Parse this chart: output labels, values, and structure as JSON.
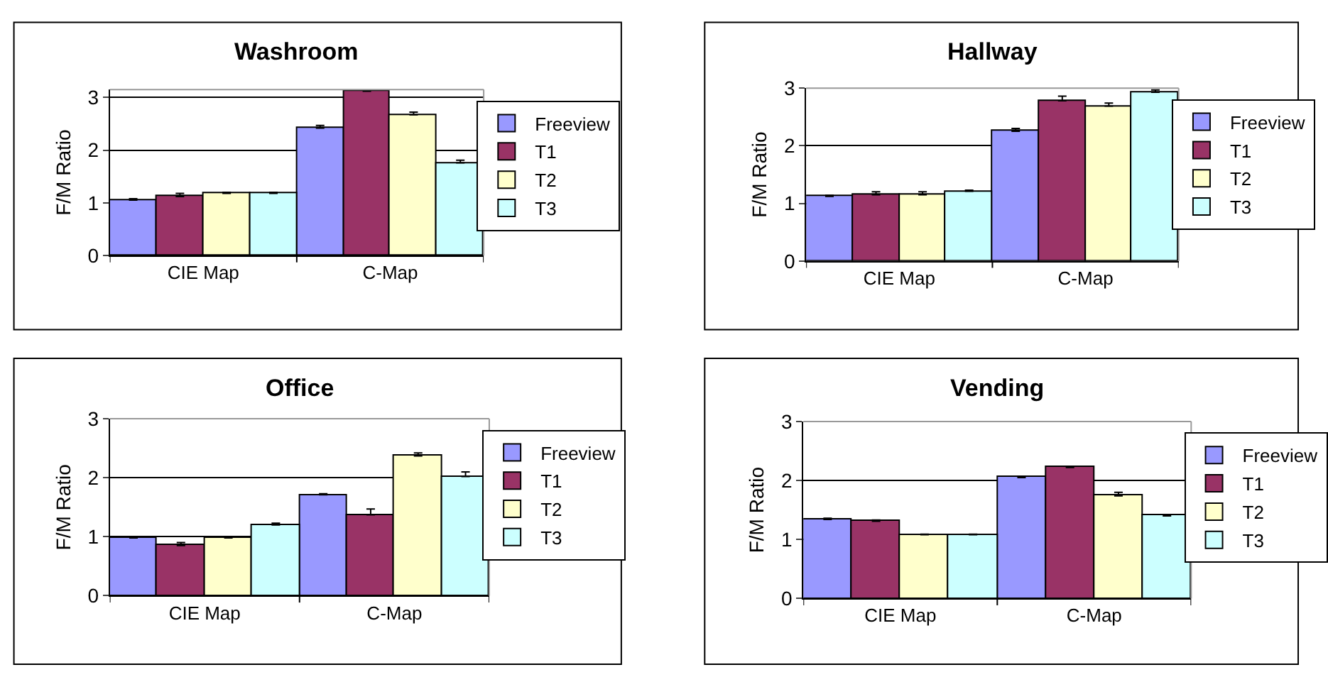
{
  "chart_data": [
    {
      "type": "bar",
      "title": "Washroom",
      "ylabel": "F/M Ratio",
      "categories": [
        "CIE Map",
        "C-Map"
      ],
      "ylim": [
        0,
        3.15
      ],
      "yticks": [
        0,
        1,
        2,
        3
      ],
      "grid": "y",
      "legend": "right",
      "series": [
        {
          "name": "Freeview",
          "color": "#9999ff",
          "values": [
            1.05,
            2.42
          ],
          "errors": [
            [
              1.05,
              1.08
            ],
            [
              2.42,
              2.47
            ]
          ]
        },
        {
          "name": "T1",
          "color": "#993366",
          "values": [
            1.12,
            3.12
          ],
          "errors": [
            [
              1.12,
              1.18
            ],
            null
          ]
        },
        {
          "name": "T2",
          "color": "#ffffcc",
          "values": [
            1.18,
            2.67
          ],
          "errors": [
            [
              1.18,
              1.2
            ],
            [
              2.67,
              2.72
            ]
          ]
        },
        {
          "name": "T3",
          "color": "#ccffff",
          "values": [
            1.18,
            1.76
          ],
          "errors": [
            [
              1.18,
              1.2
            ],
            [
              1.76,
              1.81
            ]
          ]
        }
      ]
    },
    {
      "type": "bar",
      "title": "Hallway",
      "ylabel": "F/M Ratio",
      "categories": [
        "CIE Map",
        "C-Map"
      ],
      "ylim": [
        0,
        3
      ],
      "yticks": [
        0,
        1,
        2,
        3
      ],
      "grid": "y",
      "legend": "right",
      "series": [
        {
          "name": "Freeview",
          "color": "#9999ff",
          "values": [
            1.12,
            2.25
          ],
          "errors": [
            [
              1.12,
              1.14
            ],
            [
              2.25,
              2.3
            ]
          ]
        },
        {
          "name": "T1",
          "color": "#993366",
          "values": [
            1.15,
            2.78
          ],
          "errors": [
            [
              1.15,
              1.2
            ],
            [
              2.78,
              2.86
            ]
          ]
        },
        {
          "name": "T2",
          "color": "#ffffcc",
          "values": [
            1.15,
            2.69
          ],
          "errors": [
            [
              1.15,
              1.2
            ],
            [
              2.69,
              2.74
            ]
          ]
        },
        {
          "name": "T3",
          "color": "#ccffff",
          "values": [
            1.21,
            2.93
          ],
          "errors": [
            [
              1.21,
              1.23
            ],
            [
              2.93,
              2.97
            ]
          ]
        }
      ]
    },
    {
      "type": "bar",
      "title": "Office",
      "ylabel": "F/M Ratio",
      "categories": [
        "CIE Map",
        "C-Map"
      ],
      "ylim": [
        0,
        3
      ],
      "yticks": [
        0,
        1,
        2,
        3
      ],
      "grid": "y",
      "legend": "right",
      "series": [
        {
          "name": "Freeview",
          "color": "#9999ff",
          "values": [
            0.98,
            1.71
          ],
          "errors": [
            [
              0.98,
              0.99
            ],
            [
              1.71,
              1.73
            ]
          ]
        },
        {
          "name": "T1",
          "color": "#993366",
          "values": [
            0.85,
            1.37
          ],
          "errors": [
            [
              0.85,
              0.9
            ],
            [
              1.37,
              1.47
            ]
          ]
        },
        {
          "name": "T2",
          "color": "#ffffcc",
          "values": [
            0.98,
            2.37
          ],
          "errors": [
            [
              0.98,
              0.99
            ],
            [
              2.37,
              2.42
            ]
          ]
        },
        {
          "name": "T3",
          "color": "#ccffff",
          "values": [
            1.2,
            2.02
          ],
          "errors": [
            [
              1.2,
              1.23
            ],
            [
              2.02,
              2.1
            ]
          ]
        }
      ]
    },
    {
      "type": "bar",
      "title": "Vending",
      "ylabel": "F/M Ratio",
      "categories": [
        "CIE Map",
        "C-Map"
      ],
      "ylim": [
        0,
        3
      ],
      "yticks": [
        0,
        1,
        2,
        3
      ],
      "grid": "y",
      "legend": "right",
      "series": [
        {
          "name": "Freeview",
          "color": "#9999ff",
          "values": [
            1.34,
            2.05
          ],
          "errors": [
            [
              1.34,
              1.36
            ],
            [
              2.05,
              2.07
            ]
          ]
        },
        {
          "name": "T1",
          "color": "#993366",
          "values": [
            1.31,
            2.22
          ],
          "errors": [
            [
              1.31,
              1.33
            ],
            [
              2.22,
              2.24
            ]
          ]
        },
        {
          "name": "T2",
          "color": "#ffffcc",
          "values": [
            1.08,
            1.74
          ],
          "errors": [
            [
              1.08,
              1.09
            ],
            [
              1.74,
              1.8
            ]
          ]
        },
        {
          "name": "T3",
          "color": "#ccffff",
          "values": [
            1.08,
            1.4
          ],
          "errors": [
            [
              1.08,
              1.09
            ],
            [
              1.4,
              1.42
            ]
          ]
        }
      ]
    }
  ]
}
